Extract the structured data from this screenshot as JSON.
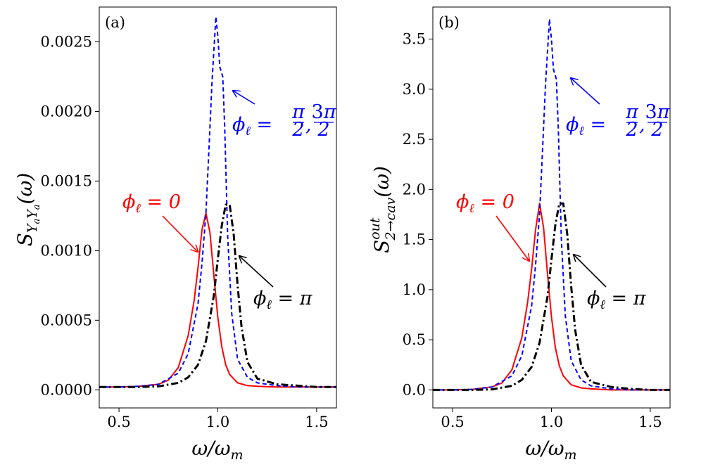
{
  "chart_data": [
    {
      "type": "line",
      "panel_label": "(a)",
      "xlabel": "ω/ω_m",
      "ylabel": "S_{Y_aY_a}(ω)",
      "ylabel_parts": {
        "main": "S",
        "sub": "Y",
        "sub2": "a",
        "sub3": "Y",
        "sub4": "a",
        "arg": "(ω)"
      },
      "xlim": [
        0.4,
        1.6
      ],
      "ylim": [
        -0.00013,
        0.00275
      ],
      "xticks": [
        0.5,
        1.0,
        1.5
      ],
      "xtick_labels": [
        "0.5",
        "1.0",
        "1.5"
      ],
      "yticks": [
        0.0,
        0.0005,
        0.001,
        0.0015,
        0.002,
        0.0025
      ],
      "ytick_labels": [
        "0.0000",
        "0.0005",
        "0.0010",
        "0.0015",
        "0.0020",
        "0.0025"
      ],
      "grid": false,
      "legend": "none",
      "series": [
        {
          "name": "φ_ℓ = 0",
          "color": "#ff0000",
          "style": "solid",
          "x": [
            0.4,
            0.5,
            0.6,
            0.7,
            0.75,
            0.8,
            0.85,
            0.88,
            0.9,
            0.92,
            0.94,
            0.96,
            0.98,
            1.0,
            1.02,
            1.04,
            1.06,
            1.1,
            1.15,
            1.2,
            1.3,
            1.4,
            1.5,
            1.6
          ],
          "y": [
            2e-05,
            2e-05,
            2.5e-05,
            4e-05,
            7e-05,
            0.00016,
            0.00039,
            0.00064,
            0.00088,
            0.00115,
            0.00127,
            0.00113,
            0.00082,
            0.00052,
            0.00031,
            0.00018,
            0.00011,
            5e-05,
            3e-05,
            2.5e-05,
            2e-05,
            2e-05,
            2e-05,
            2e-05
          ]
        },
        {
          "name": "φ_ℓ = π/2, 3π/2",
          "color": "#0000ff",
          "style": "dashed",
          "x": [
            0.4,
            0.5,
            0.6,
            0.7,
            0.8,
            0.85,
            0.9,
            0.92,
            0.94,
            0.955,
            0.97,
            0.99,
            1.0,
            1.01,
            1.025,
            1.035,
            1.05,
            1.07,
            1.1,
            1.15,
            1.2,
            1.3,
            1.4,
            1.5,
            1.6
          ],
          "y": [
            2e-05,
            2e-05,
            2.5e-05,
            4e-05,
            0.00012,
            0.00026,
            0.00062,
            0.00091,
            0.00127,
            0.00173,
            0.0022,
            0.00268,
            0.00254,
            0.00232,
            0.00225,
            0.00188,
            0.0011,
            0.00055,
            0.00022,
            9e-05,
            5e-05,
            3e-05,
            2e-05,
            2e-05,
            2e-05
          ]
        },
        {
          "name": "φ_ℓ = π",
          "color": "#000000",
          "style": "dashdot",
          "x": [
            0.4,
            0.5,
            0.6,
            0.7,
            0.8,
            0.85,
            0.9,
            0.94,
            0.98,
            1.0,
            1.02,
            1.04,
            1.06,
            1.08,
            1.1,
            1.12,
            1.15,
            1.2,
            1.3,
            1.4,
            1.5,
            1.6
          ],
          "y": [
            2e-05,
            2e-05,
            2e-05,
            2.5e-05,
            5e-05,
            9e-05,
            0.00018,
            0.00035,
            0.00068,
            0.00094,
            0.00118,
            0.00133,
            0.00133,
            0.00112,
            0.00075,
            0.00045,
            0.0002,
            8e-05,
            4e-05,
            3e-05,
            2e-05,
            2e-05
          ]
        }
      ],
      "annotations": [
        {
          "text": "φ_ℓ = π/2, 3π/2",
          "color": "#0000ff"
        },
        {
          "text": "φ_ℓ = 0",
          "color": "#ff0000"
        },
        {
          "text": "φ_ℓ = π",
          "color": "#000000"
        }
      ]
    },
    {
      "type": "line",
      "panel_label": "(b)",
      "xlabel": "ω/ω_m",
      "ylabel": "S^{out}_{2→cav}(ω)",
      "ylabel_parts": {
        "main": "S",
        "sup": "out",
        "sub": "2→cav",
        "arg": "(ω)"
      },
      "xlim": [
        0.4,
        1.6
      ],
      "ylim": [
        -0.18,
        3.82
      ],
      "xticks": [
        0.5,
        1.0,
        1.5
      ],
      "xtick_labels": [
        "0.5",
        "1.0",
        "1.5"
      ],
      "yticks": [
        0.0,
        0.5,
        1.0,
        1.5,
        2.0,
        2.5,
        3.0,
        3.5
      ],
      "ytick_labels": [
        "0.0",
        "0.5",
        "1.0",
        "1.5",
        "2.0",
        "2.5",
        "3.0",
        "3.5"
      ],
      "grid": false,
      "legend": "none",
      "series": [
        {
          "name": "φ_ℓ = 0",
          "color": "#ff0000",
          "style": "solid",
          "x": [
            0.4,
            0.5,
            0.6,
            0.7,
            0.75,
            0.8,
            0.85,
            0.88,
            0.9,
            0.92,
            0.94,
            0.96,
            0.98,
            1.0,
            1.02,
            1.04,
            1.06,
            1.1,
            1.15,
            1.2,
            1.3,
            1.4,
            1.5,
            1.6
          ],
          "y": [
            0.0,
            0.0,
            0.005,
            0.03,
            0.07,
            0.2,
            0.52,
            0.88,
            1.21,
            1.6,
            1.86,
            1.62,
            1.16,
            0.73,
            0.42,
            0.24,
            0.14,
            0.05,
            0.02,
            0.01,
            0.0,
            0.0,
            0.0,
            0.0
          ]
        },
        {
          "name": "φ_ℓ = π/2, 3π/2",
          "color": "#0000ff",
          "style": "dashed",
          "x": [
            0.4,
            0.5,
            0.6,
            0.7,
            0.8,
            0.85,
            0.9,
            0.92,
            0.94,
            0.955,
            0.97,
            0.99,
            1.0,
            1.01,
            1.025,
            1.035,
            1.05,
            1.07,
            1.1,
            1.15,
            1.2,
            1.3,
            1.4,
            1.5,
            1.6
          ],
          "y": [
            0.0,
            0.0,
            0.005,
            0.03,
            0.14,
            0.34,
            0.84,
            1.25,
            1.75,
            2.4,
            3.05,
            3.7,
            3.5,
            3.2,
            3.1,
            2.6,
            1.52,
            0.74,
            0.29,
            0.1,
            0.04,
            0.01,
            0.0,
            0.0,
            0.0
          ]
        },
        {
          "name": "φ_ℓ = π",
          "color": "#000000",
          "style": "dashdot",
          "x": [
            0.4,
            0.5,
            0.6,
            0.7,
            0.8,
            0.85,
            0.9,
            0.94,
            0.98,
            1.0,
            1.02,
            1.04,
            1.06,
            1.08,
            1.1,
            1.12,
            1.15,
            1.2,
            1.3,
            1.4,
            1.5,
            1.6
          ],
          "y": [
            0.0,
            0.0,
            0.0,
            0.005,
            0.04,
            0.1,
            0.23,
            0.47,
            0.93,
            1.3,
            1.65,
            1.86,
            1.86,
            1.55,
            1.03,
            0.6,
            0.25,
            0.08,
            0.03,
            0.01,
            0.0,
            0.0
          ]
        }
      ],
      "annotations": [
        {
          "text": "φ_ℓ = π/2, 3π/2",
          "color": "#0000ff"
        },
        {
          "text": "φ_ℓ = 0",
          "color": "#ff0000"
        },
        {
          "text": "φ_ℓ = π",
          "color": "#000000"
        }
      ]
    }
  ]
}
